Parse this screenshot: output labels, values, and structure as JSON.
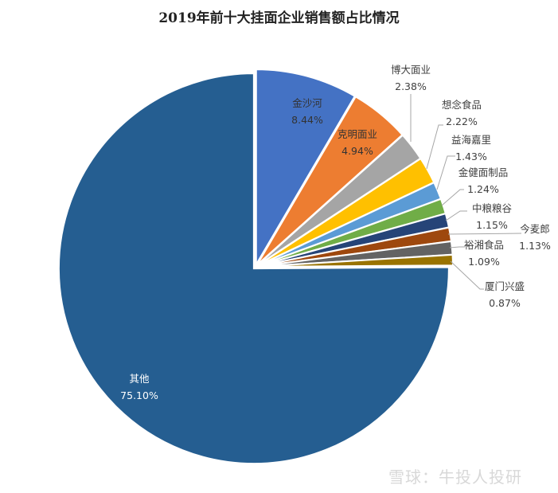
{
  "chart_data": {
    "type": "pie",
    "title": "2019年前十大挂面企业销售额占比情况",
    "start_angle": "12 o'clock",
    "direction": "clockwise",
    "slices": [
      {
        "name": "金沙河",
        "value": 8.44,
        "label": "8.44%",
        "color": "#4472C4"
      },
      {
        "name": "克明面业",
        "value": 4.94,
        "label": "4.94%",
        "color": "#ED7D31"
      },
      {
        "name": "博大面业",
        "value": 2.38,
        "label": "2.38%",
        "color": "#A5A5A5"
      },
      {
        "name": "想念食品",
        "value": 2.22,
        "label": "2.22%",
        "color": "#FFC000"
      },
      {
        "name": "益海嘉里",
        "value": 1.43,
        "label": "1.43%",
        "color": "#5B9BD5"
      },
      {
        "name": "金健面制品",
        "value": 1.24,
        "label": "1.24%",
        "color": "#70AD47"
      },
      {
        "name": "中粮粮谷",
        "value": 1.15,
        "label": "1.15%",
        "color": "#264478"
      },
      {
        "name": "今麦郎",
        "value": 1.13,
        "label": "1.13%",
        "color": "#9E480E"
      },
      {
        "name": "裕湘食品",
        "value": 1.09,
        "label": "1.09%",
        "color": "#636363"
      },
      {
        "name": "厦门兴盛",
        "value": 0.87,
        "label": "0.87%",
        "color": "#997300"
      },
      {
        "name": "其他",
        "value": 75.1,
        "label": "75.10%",
        "color": "#255E91"
      }
    ]
  },
  "watermark": "雪球：牛投人投研"
}
